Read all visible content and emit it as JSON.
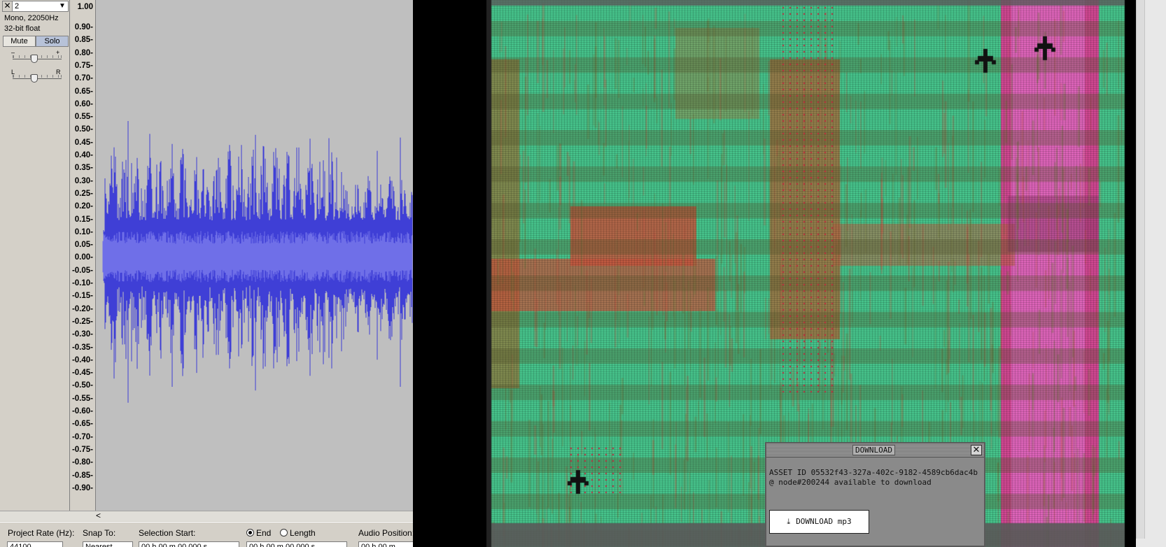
{
  "track": {
    "close_glyph": "✕",
    "name": "2",
    "menu_glyph": "▼",
    "format": "Mono, 22050Hz",
    "bit_depth": "32-bit float",
    "mute_label": "Mute",
    "solo_label": "Solo",
    "gain_minus": "–",
    "gain_plus": "+",
    "pan_left": "L",
    "pan_right": "R"
  },
  "ruler": {
    "labels": [
      "1.00",
      "0.90-",
      "0.85-",
      "0.80-",
      "0.75-",
      "0.70-",
      "0.65-",
      "0.60-",
      "0.55-",
      "0.50-",
      "0.45-",
      "0.40-",
      "0.35-",
      "0.30-",
      "0.25-",
      "0.20-",
      "0.15-",
      "0.10-",
      "0.05-",
      "0.00-",
      "-0.05-",
      "-0.10-",
      "-0.15-",
      "-0.20-",
      "-0.25-",
      "-0.30-",
      "-0.35-",
      "-0.40-",
      "-0.45-",
      "-0.50-",
      "-0.55-",
      "-0.60-",
      "-0.65-",
      "-0.70-",
      "-0.75-",
      "-0.80-",
      "-0.85-",
      "-0.90-"
    ]
  },
  "scroll": {
    "left_arrow": "<"
  },
  "toolbar": {
    "project_rate_label": "Project Rate (Hz):",
    "project_rate_value": "44100",
    "snap_to_label": "Snap To:",
    "snap_to_value": "Nearest",
    "selection_start_label": "Selection Start:",
    "selection_start_value": "00 h 00 m 00.000 s",
    "end_label": "End",
    "length_label": "Length",
    "end_value": "00 h 00 m 00.000 s",
    "audio_position_label": "Audio Position:",
    "audio_position_value": "00 h 00 m"
  },
  "colors": {
    "waveform": "#3f3fd6",
    "waveform_rms": "#6f6fe8",
    "glitch_green": "#49c98f",
    "glitch_red": "#c9583f",
    "glitch_pink": "#e65fbe"
  },
  "dialog": {
    "title": "DOWNLOAD",
    "close_glyph": "✕",
    "message": "ASSET ID 05532f43-327a-402c-9182-4589cb6dac4b @ node#200244 available to download",
    "button_icon": "⤓",
    "button_label": "DOWNLOAD mp3"
  }
}
